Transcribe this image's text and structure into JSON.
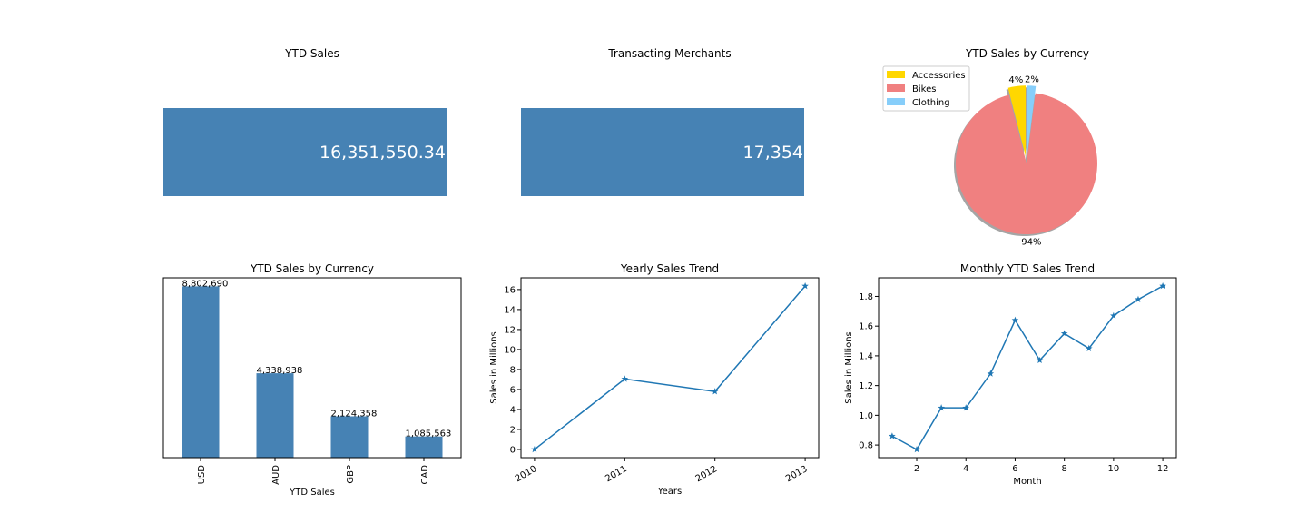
{
  "kpis": [
    {
      "title": "YTD Sales",
      "value": "16,351,550.34",
      "color": "#4682b4"
    },
    {
      "title": "Transacting Merchants",
      "value": "17,354",
      "color": "#4682b4"
    }
  ],
  "chart_data": [
    {
      "type": "pie",
      "title": "YTD Sales by Currency",
      "labels": [
        "Accessories",
        "Bikes",
        "Clothing"
      ],
      "values": [
        4,
        94,
        2
      ],
      "value_labels": [
        "4%",
        "94%",
        "2%"
      ],
      "colors": [
        "#ffd700",
        "#f08080",
        "#87cefa"
      ],
      "exploded": [
        true,
        false,
        true
      ],
      "shadow": true,
      "legend": "upper-left"
    },
    {
      "type": "bar",
      "title": "YTD Sales by Currency",
      "xlabel": "YTD Sales",
      "categories": [
        "USD",
        "AUD",
        "GBP",
        "CAD"
      ],
      "values": [
        8802690,
        4338938,
        2124358,
        1085563
      ],
      "value_labels": [
        "8,802,690",
        "4,338,938",
        "2,124,358",
        "1,085,563"
      ],
      "color": "#4682b4",
      "y_axis_visible": false,
      "xtick_rotation": 90
    },
    {
      "type": "line",
      "title": "Yearly Sales Trend",
      "xlabel": "Years",
      "ylabel": "Sales in Millions",
      "x": [
        "2010",
        "2011",
        "2012",
        "2013"
      ],
      "y": [
        0.0,
        7.05,
        5.8,
        16.35
      ],
      "yticks": [
        0,
        2,
        4,
        6,
        8,
        10,
        12,
        14,
        16
      ],
      "marker": "star",
      "color": "#1f77b4",
      "xtick_rotation": 30
    },
    {
      "type": "line",
      "title": "Monthly YTD Sales Trend",
      "xlabel": "Month",
      "ylabel": "Sales in Millions",
      "x": [
        1,
        2,
        3,
        4,
        5,
        6,
        7,
        8,
        9,
        10,
        11,
        12
      ],
      "y": [
        0.86,
        0.77,
        1.05,
        1.05,
        1.28,
        1.64,
        1.37,
        1.55,
        1.45,
        1.67,
        1.78,
        1.87
      ],
      "xticks": [
        2,
        4,
        6,
        8,
        10,
        12
      ],
      "yticks": [
        0.8,
        1.0,
        1.2,
        1.4,
        1.6,
        1.8
      ],
      "ytick_labels": [
        "0.8",
        "1.0",
        "1.2",
        "1.4",
        "1.6",
        "1.8"
      ],
      "marker": "star",
      "color": "#1f77b4"
    }
  ]
}
